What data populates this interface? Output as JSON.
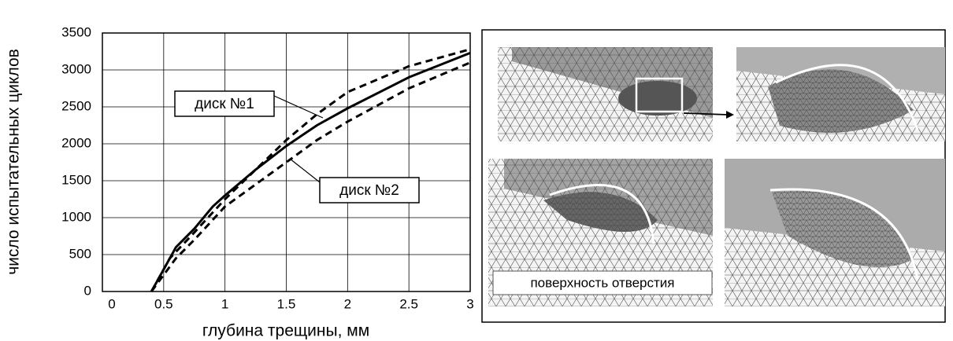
{
  "chart_data": {
    "type": "line",
    "xlabel": "глубина трещины, мм",
    "ylabel": "число испытательных циклов",
    "xlim": [
      0,
      3
    ],
    "xticks": [
      0,
      0.5,
      1,
      1.5,
      2,
      2.5,
      3
    ],
    "ylim": [
      0,
      3500
    ],
    "yticks": [
      0,
      500,
      1000,
      1500,
      2000,
      2500,
      3000,
      3500
    ],
    "grid": true,
    "series": [
      {
        "color": "#000000",
        "style": "solid",
        "x": [
          0.4,
          0.5,
          0.6,
          0.75,
          0.9,
          1,
          1.25,
          1.5,
          1.75,
          2,
          2.5,
          3
        ],
        "values": [
          0,
          300,
          600,
          850,
          1150,
          1300,
          1650,
          1970,
          2250,
          2480,
          2900,
          3230
        ]
      },
      {
        "name": "диск №1",
        "color": "#000000",
        "style": "dashed",
        "x": [
          0.4,
          0.55,
          0.75,
          1,
          1.25,
          1.5,
          1.75,
          2,
          2.5,
          3
        ],
        "values": [
          0,
          450,
          800,
          1250,
          1650,
          2050,
          2400,
          2700,
          3050,
          3280
        ]
      },
      {
        "name": "диск №2",
        "color": "#000000",
        "style": "dashed",
        "x": [
          0.4,
          0.6,
          0.75,
          1,
          1.25,
          1.5,
          1.75,
          2,
          2.5,
          3
        ],
        "values": [
          0,
          450,
          700,
          1150,
          1450,
          1750,
          2050,
          2300,
          2750,
          3100
        ]
      }
    ]
  },
  "panel": {
    "label": "поверхность отверстия"
  }
}
